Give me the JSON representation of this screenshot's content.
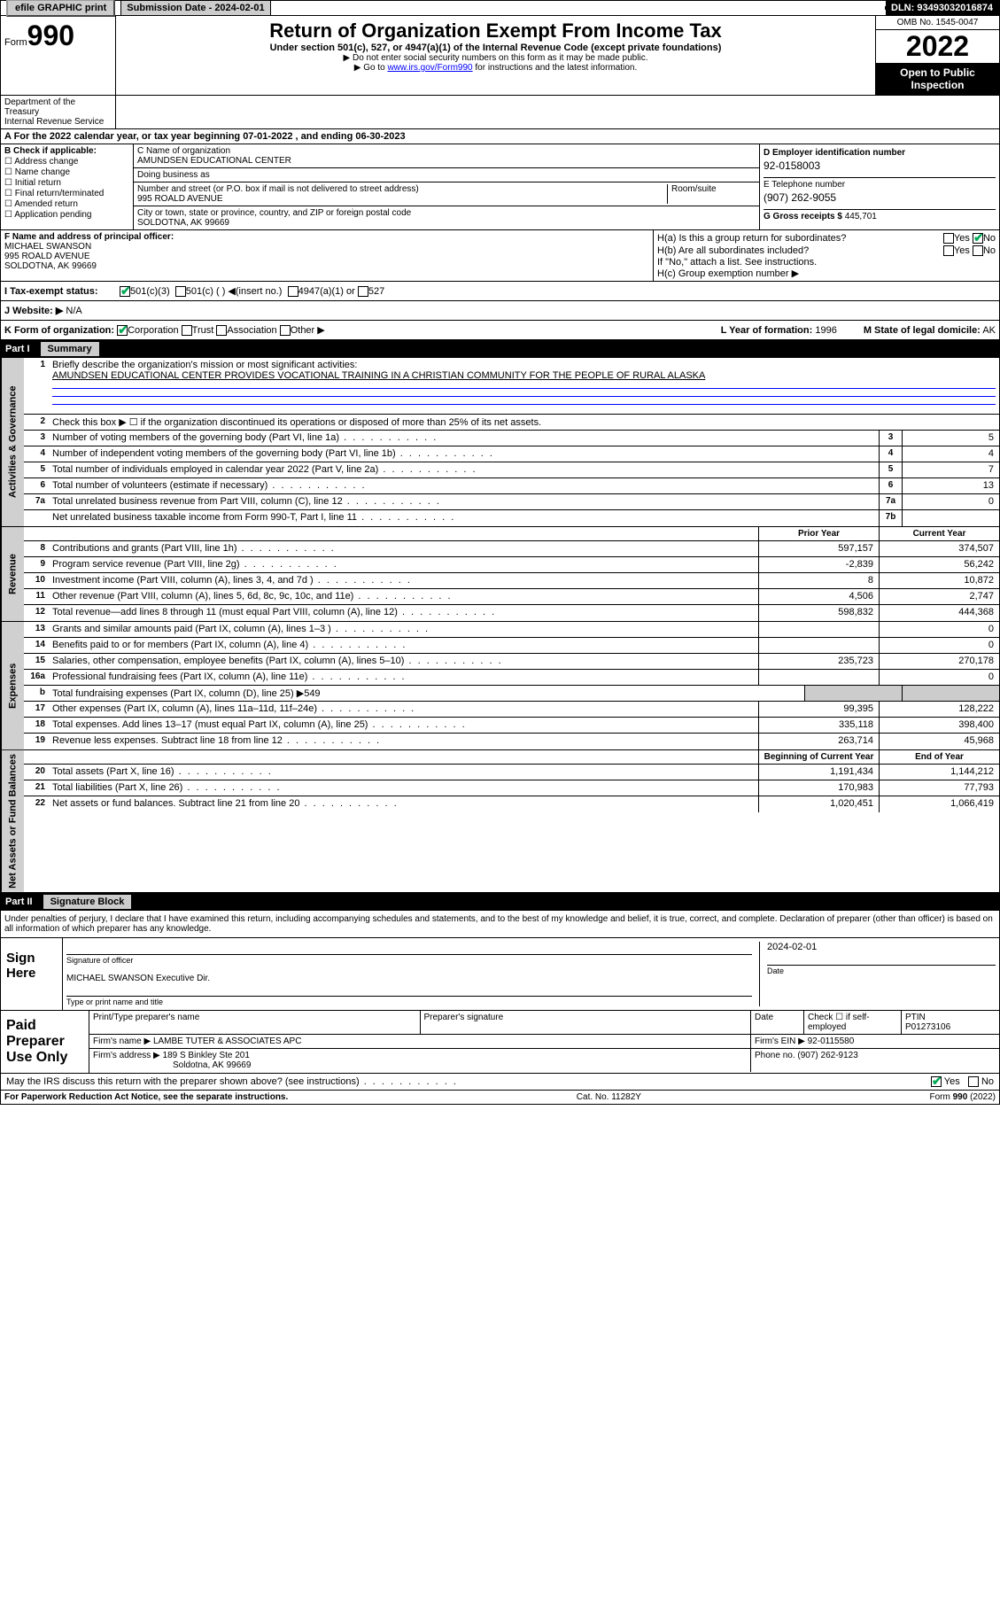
{
  "top": {
    "efile": "efile GRAPHIC print",
    "sub_label": "Submission Date - 2024-02-01",
    "dln": "DLN: 93493032016874"
  },
  "header": {
    "form_word": "Form",
    "form_num": "990",
    "title": "Return of Organization Exempt From Income Tax",
    "subtitle": "Under section 501(c), 527, or 4947(a)(1) of the Internal Revenue Code (except private foundations)",
    "note1": "▶ Do not enter social security numbers on this form as it may be made public.",
    "note2_pre": "▶ Go to ",
    "note2_link": "www.irs.gov/Form990",
    "note2_post": " for instructions and the latest information.",
    "omb": "OMB No. 1545-0047",
    "year": "2022",
    "inspection": "Open to Public Inspection",
    "dept": "Department of the Treasury\nInternal Revenue Service"
  },
  "period": "A For the 2022 calendar year, or tax year beginning 07-01-2022   , and ending 06-30-2023",
  "b": {
    "label": "B Check if applicable:",
    "items": [
      "Address change",
      "Name change",
      "Initial return",
      "Final return/terminated",
      "Amended return",
      "Application pending"
    ]
  },
  "c": {
    "name_label": "C Name of organization",
    "name": "AMUNDSEN EDUCATIONAL CENTER",
    "dba_label": "Doing business as",
    "dba": "",
    "addr_label": "Number and street (or P.O. box if mail is not delivered to street address)",
    "room_label": "Room/suite",
    "addr": "995 ROALD AVENUE",
    "city_label": "City or town, state or province, country, and ZIP or foreign postal code",
    "city": "SOLDOTNA, AK  99669"
  },
  "d": {
    "label": "D Employer identification number",
    "val": "92-0158003"
  },
  "e": {
    "label": "E Telephone number",
    "val": "(907) 262-9055"
  },
  "g": {
    "label": "G Gross receipts $",
    "val": "445,701"
  },
  "f": {
    "label": "F Name and address of principal officer:",
    "name": "MICHAEL SWANSON",
    "addr1": "995 ROALD AVENUE",
    "addr2": "SOLDOTNA, AK  99669"
  },
  "h": {
    "a_label": "H(a)  Is this a group return for subordinates?",
    "a_yesno": [
      "Yes",
      "No"
    ],
    "b_label": "H(b)  Are all subordinates included?",
    "b_note": "If \"No,\" attach a list. See instructions.",
    "c_label": "H(c)  Group exemption number ▶"
  },
  "i": {
    "label": "I   Tax-exempt status:",
    "opts": [
      "501(c)(3)",
      "501(c) (  ) ◀(insert no.)",
      "4947(a)(1) or",
      "527"
    ]
  },
  "j": {
    "label": "J   Website: ▶",
    "val": "N/A"
  },
  "k": {
    "label": "K Form of organization:",
    "opts": [
      "Corporation",
      "Trust",
      "Association",
      "Other ▶"
    ],
    "l_label": "L Year of formation:",
    "l_val": "1996",
    "m_label": "M State of legal domicile:",
    "m_val": "AK"
  },
  "part1": {
    "label": "Part I",
    "title": "Summary"
  },
  "summary": {
    "sections": [
      {
        "side": "Activities & Governance",
        "rows": [
          {
            "n": "1",
            "text": "Briefly describe the organization's mission or most significant activities:",
            "mission": "AMUNDSEN EDUCATIONAL CENTER PROVIDES VOCATIONAL TRAINING IN A CHRISTIAN COMMUNITY FOR THE PEOPLE OF RURAL ALASKA"
          },
          {
            "n": "2",
            "text": "Check this box ▶ ☐  if the organization discontinued its operations or disposed of more than 25% of its net assets."
          },
          {
            "n": "3",
            "text": "Number of voting members of the governing body (Part VI, line 1a)",
            "box": "3",
            "cur": "5"
          },
          {
            "n": "4",
            "text": "Number of independent voting members of the governing body (Part VI, line 1b)",
            "box": "4",
            "cur": "4"
          },
          {
            "n": "5",
            "text": "Total number of individuals employed in calendar year 2022 (Part V, line 2a)",
            "box": "5",
            "cur": "7"
          },
          {
            "n": "6",
            "text": "Total number of volunteers (estimate if necessary)",
            "box": "6",
            "cur": "13"
          },
          {
            "n": "7a",
            "text": "Total unrelated business revenue from Part VIII, column (C), line 12",
            "box": "7a",
            "cur": "0"
          },
          {
            "n": "",
            "text": "Net unrelated business taxable income from Form 990-T, Part I, line 11",
            "box": "7b",
            "cur": ""
          }
        ]
      },
      {
        "side": "Revenue",
        "header": {
          "prior": "Prior Year",
          "cur": "Current Year"
        },
        "rows": [
          {
            "n": "8",
            "text": "Contributions and grants (Part VIII, line 1h)",
            "prior": "597,157",
            "cur": "374,507"
          },
          {
            "n": "9",
            "text": "Program service revenue (Part VIII, line 2g)",
            "prior": "-2,839",
            "cur": "56,242"
          },
          {
            "n": "10",
            "text": "Investment income (Part VIII, column (A), lines 3, 4, and 7d )",
            "prior": "8",
            "cur": "10,872"
          },
          {
            "n": "11",
            "text": "Other revenue (Part VIII, column (A), lines 5, 6d, 8c, 9c, 10c, and 11e)",
            "prior": "4,506",
            "cur": "2,747"
          },
          {
            "n": "12",
            "text": "Total revenue—add lines 8 through 11 (must equal Part VIII, column (A), line 12)",
            "prior": "598,832",
            "cur": "444,368"
          }
        ]
      },
      {
        "side": "Expenses",
        "rows": [
          {
            "n": "13",
            "text": "Grants and similar amounts paid (Part IX, column (A), lines 1–3 )",
            "prior": "",
            "cur": "0"
          },
          {
            "n": "14",
            "text": "Benefits paid to or for members (Part IX, column (A), line 4)",
            "prior": "",
            "cur": "0"
          },
          {
            "n": "15",
            "text": "Salaries, other compensation, employee benefits (Part IX, column (A), lines 5–10)",
            "prior": "235,723",
            "cur": "270,178"
          },
          {
            "n": "16a",
            "text": "Professional fundraising fees (Part IX, column (A), line 11e)",
            "prior": "",
            "cur": "0"
          },
          {
            "n": "b",
            "text": "Total fundraising expenses (Part IX, column (D), line 25) ▶549",
            "shaded": true
          },
          {
            "n": "17",
            "text": "Other expenses (Part IX, column (A), lines 11a–11d, 11f–24e)",
            "prior": "99,395",
            "cur": "128,222"
          },
          {
            "n": "18",
            "text": "Total expenses. Add lines 13–17 (must equal Part IX, column (A), line 25)",
            "prior": "335,118",
            "cur": "398,400"
          },
          {
            "n": "19",
            "text": "Revenue less expenses. Subtract line 18 from line 12",
            "prior": "263,714",
            "cur": "45,968"
          }
        ]
      },
      {
        "side": "Net Assets or Fund Balances",
        "header": {
          "prior": "Beginning of Current Year",
          "cur": "End of Year"
        },
        "rows": [
          {
            "n": "20",
            "text": "Total assets (Part X, line 16)",
            "prior": "1,191,434",
            "cur": "1,144,212"
          },
          {
            "n": "21",
            "text": "Total liabilities (Part X, line 26)",
            "prior": "170,983",
            "cur": "77,793"
          },
          {
            "n": "22",
            "text": "Net assets or fund balances. Subtract line 21 from line 20",
            "prior": "1,020,451",
            "cur": "1,066,419"
          }
        ]
      }
    ]
  },
  "part2": {
    "label": "Part II",
    "title": "Signature Block"
  },
  "sig": {
    "decl": "Under penalties of perjury, I declare that I have examined this return, including accompanying schedules and statements, and to the best of my knowledge and belief, it is true, correct, and complete. Declaration of preparer (other than officer) is based on all information of which preparer has any knowledge.",
    "sign_here": "Sign Here",
    "sig_officer": "Signature of officer",
    "date_label": "Date",
    "date_val": "2024-02-01",
    "name_title": "MICHAEL SWANSON  Executive Dir.",
    "name_label": "Type or print name and title"
  },
  "prep": {
    "label": "Paid Preparer Use Only",
    "cols": [
      "Print/Type preparer's name",
      "Preparer's signature",
      "Date"
    ],
    "check_label": "Check ☐ if self-employed",
    "ptin_label": "PTIN",
    "ptin": "P01273106",
    "firm_name_label": "Firm's name   ▶",
    "firm_name": "LAMBE TUTER & ASSOCIATES APC",
    "firm_ein_label": "Firm's EIN ▶",
    "firm_ein": "92-0115580",
    "firm_addr_label": "Firm's address ▶",
    "firm_addr1": "189 S Binkley Ste 201",
    "firm_addr2": "Soldotna, AK  99669",
    "phone_label": "Phone no.",
    "phone": "(907) 262-9123"
  },
  "discuss": {
    "text": "May the IRS discuss this return with the preparer shown above? (see instructions)",
    "yes": "Yes",
    "no": "No"
  },
  "footer": {
    "left": "For Paperwork Reduction Act Notice, see the separate instructions.",
    "mid": "Cat. No. 11282Y",
    "right": "Form 990 (2022)"
  }
}
